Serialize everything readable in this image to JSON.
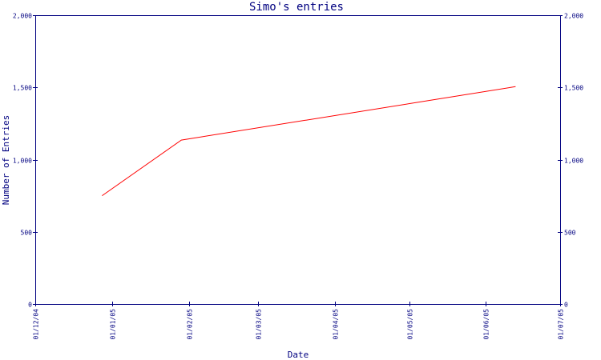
{
  "chart_data": {
    "type": "line",
    "title": "Simo's entries",
    "xlabel": "Date",
    "ylabel": "Number of Entries",
    "x_ticks": [
      "01/12/04",
      "01/01/05",
      "01/02/05",
      "01/03/05",
      "01/04/05",
      "01/05/05",
      "01/06/05",
      "01/07/05"
    ],
    "y_ticks": [
      "0",
      "500",
      "1,000",
      "1,500",
      "2,000"
    ],
    "y_tick_values": [
      0,
      500,
      1000,
      1500,
      2000
    ],
    "xlim": [
      "2004-12-01",
      "2005-07-01"
    ],
    "ylim": [
      0,
      2000
    ],
    "grid": false,
    "y_axis_mirrored_right": true,
    "series": [
      {
        "x": [
          "2004-12-28",
          "2005-01-29",
          "2005-06-13"
        ],
        "values": [
          750,
          1135,
          1505
        ]
      }
    ],
    "colors": {
      "axis": "#000080",
      "series": "#ff0000",
      "background": "#ffffff"
    }
  }
}
